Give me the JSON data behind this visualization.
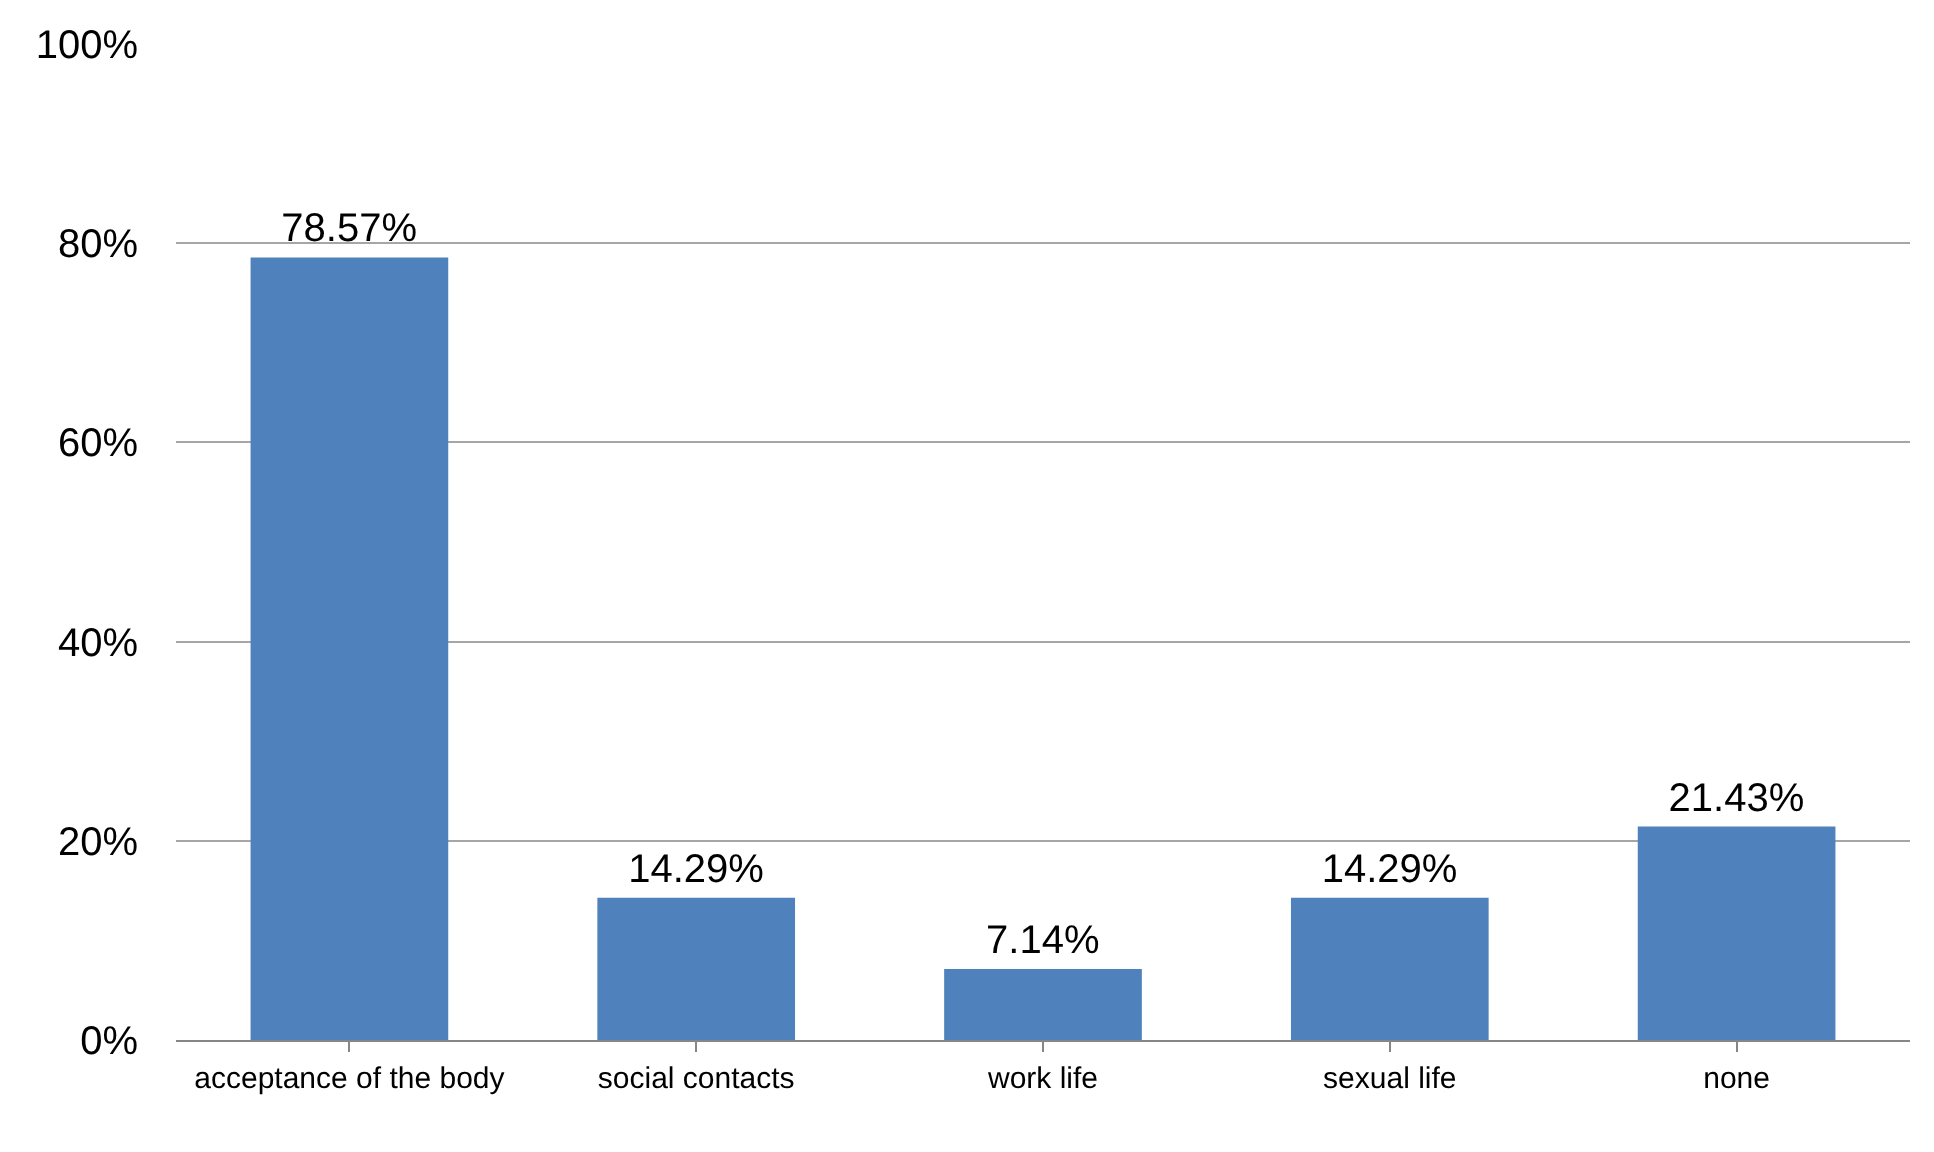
{
  "chart_data": {
    "type": "bar",
    "categories": [
      "acceptance of the body",
      "social contacts",
      "work life",
      "sexual life",
      "none"
    ],
    "values": [
      78.57,
      14.29,
      7.14,
      14.29,
      21.43
    ],
    "value_labels": [
      "78.57%",
      "14.29%",
      "7.14%",
      "14.29%",
      "21.43%"
    ],
    "color": "#4f81bd",
    "ylim": [
      0,
      100
    ],
    "yticks": [
      {
        "value": 0,
        "label": "0%"
      },
      {
        "value": 20,
        "label": "20%"
      },
      {
        "value": 40,
        "label": "40%"
      },
      {
        "value": 60,
        "label": "60%"
      },
      {
        "value": 80,
        "label": "80%"
      },
      {
        "value": 100,
        "label": "100%"
      }
    ],
    "grid": "y"
  }
}
